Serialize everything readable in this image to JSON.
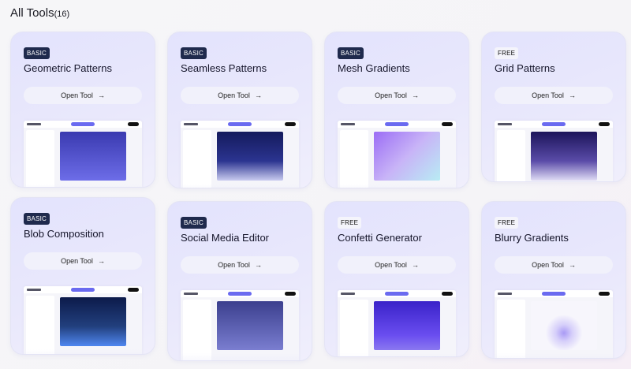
{
  "header": {
    "title": "All Tools",
    "count": "(16)"
  },
  "tools": [
    {
      "badge": "BASIC",
      "name": "Geometric Patterns",
      "button": "Open Tool",
      "arrow": "→",
      "canvas": "linear-gradient(#3a3ab0,#6d6de8)"
    },
    {
      "badge": "BASIC",
      "name": "Seamless Patterns",
      "button": "Open Tool",
      "arrow": "→",
      "canvas": "linear-gradient(#141a5c,#2b3490 60%,#c9cbf0)"
    },
    {
      "badge": "BASIC",
      "name": "Mesh Gradients",
      "button": "Open Tool",
      "arrow": "→",
      "canvas": "linear-gradient(135deg,#9b6cf5,#c8b4f7 50%,#b8ecf4)"
    },
    {
      "badge": "FREE",
      "name": "Grid Patterns",
      "button": "Open Tool",
      "arrow": "→",
      "canvas": "linear-gradient(#1c145a,#5a4ba8 60%,#e0dcf5)"
    },
    {
      "badge": "BASIC",
      "name": "Blob Composition",
      "button": "Open Tool",
      "arrow": "→",
      "canvas": "linear-gradient(#0c1a4a,#22407e 60%,#4f87f0)"
    },
    {
      "badge": "BASIC",
      "name": "Social Media Editor",
      "button": "Open Tool",
      "arrow": "→",
      "canvas": "linear-gradient(#3b3f8e,#7a7dd0)"
    },
    {
      "badge": "FREE",
      "name": "Confetti Generator",
      "button": "Open Tool",
      "arrow": "→",
      "canvas": "linear-gradient(#3a22c9,#6a4ef0 70%,#8a78f0)"
    },
    {
      "badge": "FREE",
      "name": "Blurry Gradients",
      "button": "Open Tool",
      "arrow": "→",
      "canvas": "radial-gradient(circle at 50% 65%,#a99af5 0,#d6cffa 18%,#f7f6fc 40%)"
    }
  ]
}
